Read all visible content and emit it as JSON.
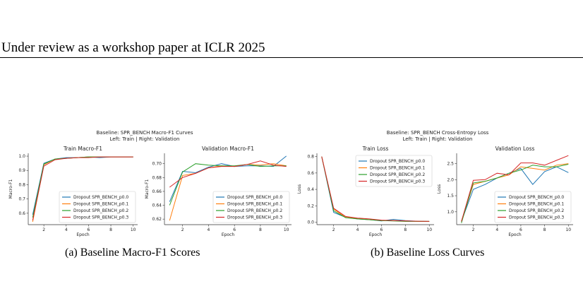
{
  "header": {
    "text": "Under review as a workshop paper at ICLR 2025"
  },
  "colors": {
    "p0.0": "#1f77b4",
    "p0.1": "#ff7f0e",
    "p0.2": "#2ca02c",
    "p0.3": "#d62728"
  },
  "figures": [
    {
      "suptitle_line1": "Baseline: SPR_BENCH Macro-F1 Curves",
      "suptitle_line2": "Left: Train  |  Right: Validation",
      "caption": "(a) Baseline Macro-F1 Scores"
    },
    {
      "suptitle_line1": "Baseline: SPR_BENCH Cross-Entropy Loss",
      "suptitle_line2": "Left: Train  |  Right: Validation",
      "caption": "(b) Baseline Loss Curves"
    }
  ],
  "chart_data": [
    {
      "type": "line",
      "title": "Train Macro-F1",
      "xlabel": "Epoch",
      "ylabel": "Macro-F1",
      "x": [
        1,
        2,
        3,
        4,
        5,
        6,
        7,
        8,
        9,
        10
      ],
      "xlim": [
        0.6,
        10.4
      ],
      "ylim": [
        0.52,
        1.02
      ],
      "xticks": [
        2,
        4,
        6,
        8,
        10
      ],
      "yticks": [
        0.6,
        0.7,
        0.8,
        0.9,
        1.0
      ],
      "tick_decimals": 1,
      "legend": "bottom-right",
      "series": [
        {
          "name": "Dropout SPR_BENCH_p0.0",
          "values": [
            0.59,
            0.95,
            0.98,
            0.99,
            0.99,
            0.995,
            0.99,
            0.995,
            0.995,
            0.995
          ]
        },
        {
          "name": "Dropout SPR_BENCH_p0.1",
          "values": [
            0.54,
            0.94,
            0.98,
            0.985,
            0.99,
            0.995,
            0.995,
            0.995,
            0.995,
            0.995
          ]
        },
        {
          "name": "Dropout SPR_BENCH_p0.2",
          "values": [
            0.57,
            0.945,
            0.98,
            0.985,
            0.99,
            0.995,
            0.995,
            0.995,
            0.995,
            0.995
          ]
        },
        {
          "name": "Dropout SPR_BENCH_p0.3",
          "values": [
            0.55,
            0.93,
            0.975,
            0.985,
            0.99,
            0.99,
            0.995,
            0.995,
            0.995,
            0.995
          ]
        }
      ]
    },
    {
      "type": "line",
      "title": "Validation Macro-F1",
      "xlabel": "Epoch",
      "ylabel": "Macro-F1",
      "x": [
        1,
        2,
        3,
        4,
        5,
        6,
        7,
        8,
        9,
        10
      ],
      "xlim": [
        0.6,
        10.4
      ],
      "ylim": [
        0.612,
        0.715
      ],
      "xticks": [
        2,
        4,
        6,
        8,
        10
      ],
      "yticks": [
        0.62,
        0.64,
        0.66,
        0.68,
        0.7
      ],
      "tick_decimals": 2,
      "legend": "bottom-right",
      "series": [
        {
          "name": "Dropout SPR_BENCH_p0.0",
          "values": [
            0.645,
            0.689,
            0.687,
            0.695,
            0.7,
            0.696,
            0.697,
            0.697,
            0.696,
            0.711
          ]
        },
        {
          "name": "Dropout SPR_BENCH_p0.1",
          "values": [
            0.618,
            0.683,
            0.686,
            0.694,
            0.697,
            0.696,
            0.699,
            0.698,
            0.7,
            0.697
          ]
        },
        {
          "name": "Dropout SPR_BENCH_p0.2",
          "values": [
            0.64,
            0.688,
            0.7,
            0.698,
            0.697,
            0.697,
            0.699,
            0.696,
            0.697,
            0.697
          ]
        },
        {
          "name": "Dropout SPR_BENCH_p0.3",
          "values": [
            0.666,
            0.68,
            0.686,
            0.694,
            0.696,
            0.696,
            0.699,
            0.704,
            0.698,
            0.696
          ]
        }
      ]
    },
    {
      "type": "line",
      "title": "Train Loss",
      "xlabel": "Epoch",
      "ylabel": "Loss",
      "x": [
        1,
        2,
        3,
        4,
        5,
        6,
        7,
        8,
        9,
        10
      ],
      "xlim": [
        0.6,
        10.4
      ],
      "ylim": [
        -0.03,
        0.84
      ],
      "xticks": [
        2,
        4,
        6,
        8,
        10
      ],
      "yticks": [
        0.0,
        0.2,
        0.4,
        0.6,
        0.8
      ],
      "tick_decimals": 1,
      "legend": "top-right",
      "series": [
        {
          "name": "Dropout SPR_BENCH_p0.0",
          "values": [
            0.8,
            0.12,
            0.06,
            0.04,
            0.03,
            0.015,
            0.035,
            0.02,
            0.012,
            0.01
          ]
        },
        {
          "name": "Dropout SPR_BENCH_p0.1",
          "values": [
            0.8,
            0.16,
            0.06,
            0.045,
            0.03,
            0.02,
            0.02,
            0.015,
            0.01,
            0.01
          ]
        },
        {
          "name": "Dropout SPR_BENCH_p0.2",
          "values": [
            0.8,
            0.14,
            0.055,
            0.04,
            0.03,
            0.02,
            0.015,
            0.01,
            0.01,
            0.01
          ]
        },
        {
          "name": "Dropout SPR_BENCH_p0.3",
          "values": [
            0.8,
            0.17,
            0.07,
            0.05,
            0.04,
            0.025,
            0.02,
            0.015,
            0.012,
            0.01
          ]
        }
      ]
    },
    {
      "type": "line",
      "title": "Validation Loss",
      "xlabel": "Epoch",
      "ylabel": "Loss",
      "x": [
        1,
        2,
        3,
        4,
        5,
        6,
        7,
        8,
        9,
        10
      ],
      "xlim": [
        0.6,
        10.4
      ],
      "ylim": [
        0.6,
        2.82
      ],
      "xticks": [
        2,
        4,
        6,
        8,
        10
      ],
      "yticks": [
        1.0,
        1.5,
        2.0,
        2.5
      ],
      "tick_decimals": 1,
      "legend": "bottom-right",
      "series": [
        {
          "name": "Dropout SPR_BENCH_p0.0",
          "values": [
            0.7,
            1.7,
            1.85,
            2.05,
            2.2,
            2.35,
            1.85,
            2.25,
            2.4,
            2.22
          ]
        },
        {
          "name": "Dropout SPR_BENCH_p0.1",
          "values": [
            0.7,
            1.85,
            1.95,
            2.05,
            2.15,
            2.4,
            2.35,
            2.3,
            2.45,
            2.5
          ]
        },
        {
          "name": "Dropout SPR_BENCH_p0.2",
          "values": [
            0.65,
            1.9,
            1.95,
            2.05,
            2.2,
            2.3,
            2.45,
            2.4,
            2.4,
            2.48
          ]
        },
        {
          "name": "Dropout SPR_BENCH_p0.3",
          "values": [
            0.7,
            1.98,
            2.0,
            2.2,
            2.15,
            2.52,
            2.52,
            2.45,
            2.6,
            2.75
          ]
        }
      ]
    }
  ]
}
